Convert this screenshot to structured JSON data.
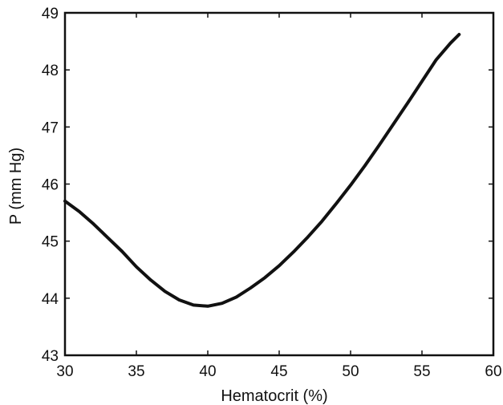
{
  "chart_data": {
    "type": "line",
    "title": "",
    "xlabel": "Hematocrit (%)",
    "ylabel": "P (mm Hg)",
    "xlim": [
      30,
      60
    ],
    "ylim": [
      43,
      49
    ],
    "xticks": [
      "30",
      "35",
      "40",
      "45",
      "50",
      "55",
      "60"
    ],
    "yticks": [
      "43",
      "44",
      "45",
      "46",
      "47",
      "48",
      "49"
    ],
    "grid": false,
    "legend": "none",
    "series": [
      {
        "color": "#111111",
        "x": [
          30,
          31,
          32,
          33,
          34,
          35,
          36,
          37,
          38,
          39,
          40,
          41,
          42,
          43,
          44,
          45,
          46,
          47,
          48,
          49,
          50,
          51,
          52,
          53,
          54,
          55,
          56,
          57,
          57.6
        ],
        "y": [
          45.7,
          45.52,
          45.3,
          45.06,
          44.82,
          44.55,
          44.32,
          44.12,
          43.97,
          43.88,
          43.86,
          43.91,
          44.02,
          44.18,
          44.36,
          44.57,
          44.81,
          45.07,
          45.35,
          45.66,
          45.98,
          46.32,
          46.68,
          47.05,
          47.42,
          47.8,
          48.18,
          48.47,
          48.62
        ]
      }
    ]
  }
}
